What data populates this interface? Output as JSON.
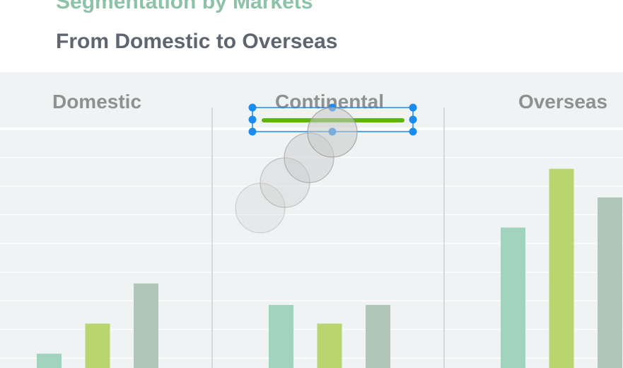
{
  "header": {
    "title": "Segmentation by Markets",
    "subtitle": "From Domestic to Overseas"
  },
  "colors": {
    "series_a": "#a2d3bf",
    "series_b": "#b8d56e",
    "series_c": "#b0c6b8",
    "selection": "#1a8cf0",
    "line_shape": "#5fb40a",
    "panel_bg": "#f0f3f4"
  },
  "chart_data": {
    "type": "bar",
    "categories": [
      "Domestic",
      "Continental",
      "Overseas"
    ],
    "series": [
      {
        "values": [
          0.5,
          2.2,
          4.9
        ]
      },
      {
        "values": [
          1.55,
          1.55,
          6.95
        ]
      },
      {
        "values": [
          2.95,
          2.2,
          5.95
        ]
      }
    ],
    "ylim": [
      0,
      10
    ],
    "grid": true,
    "legend": "none"
  },
  "canvas": {
    "selected_object": "line-shape",
    "drag_trail_icons": [
      "touch-point-icon",
      "touch-point-icon",
      "touch-point-icon",
      "touch-point-icon"
    ]
  }
}
